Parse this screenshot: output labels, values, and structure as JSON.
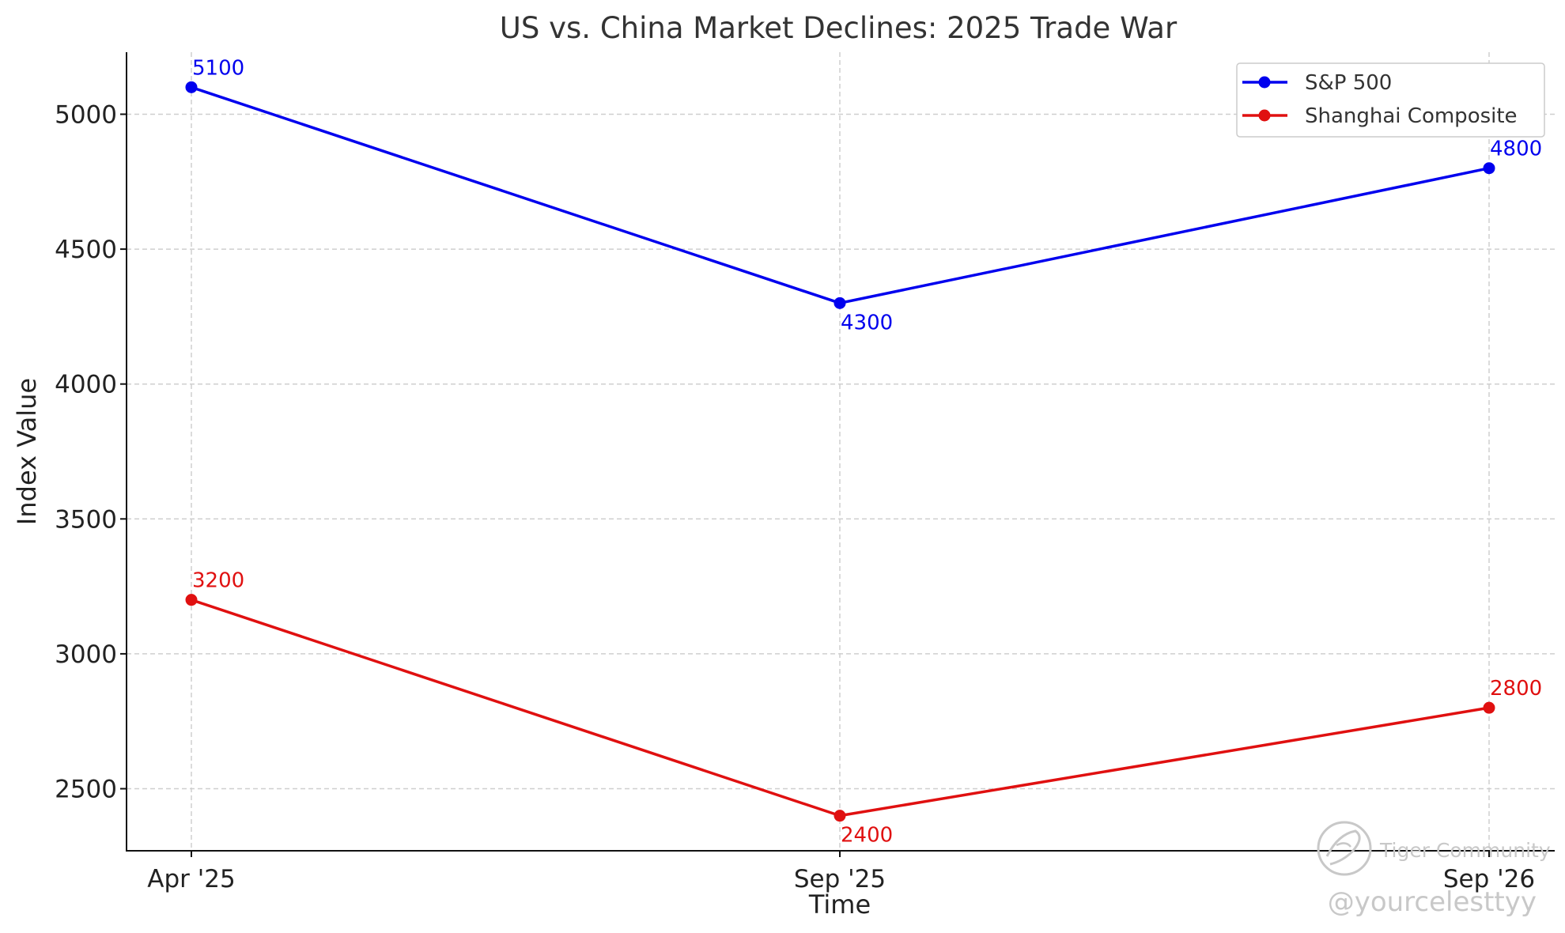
{
  "chart_data": {
    "type": "line",
    "title": "US vs. China Market Declines: 2025 Trade War",
    "xlabel": "Time",
    "ylabel": "Index Value",
    "categories": [
      "Apr '25",
      "Sep '25",
      "Sep '26"
    ],
    "y_ticks": [
      2500,
      3000,
      3500,
      4000,
      4500,
      5000
    ],
    "ylim": [
      2270,
      5230
    ],
    "grid": true,
    "legend_position": "top-right",
    "series": [
      {
        "name": "S&P 500",
        "color": "#0000ee",
        "values": [
          5100,
          4300,
          4800
        ]
      },
      {
        "name": "Shanghai Composite",
        "color": "#e01010",
        "values": [
          3200,
          2400,
          2800
        ]
      }
    ]
  },
  "watermark": {
    "brand": "Tiger Community",
    "handle": "@yourcelesttyy"
  }
}
